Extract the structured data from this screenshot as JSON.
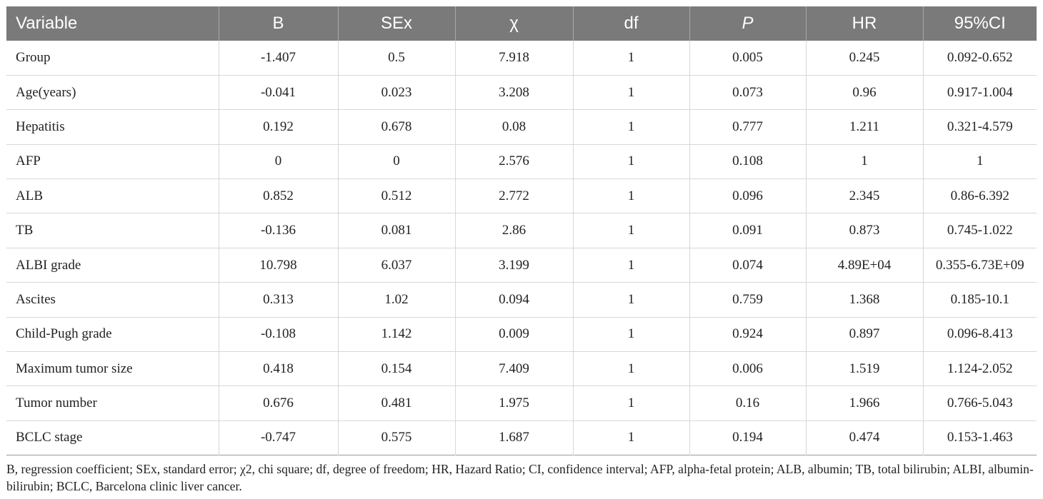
{
  "table": {
    "headers": [
      "Variable",
      "B",
      "SEx",
      "χ",
      "df",
      "P",
      "HR",
      "95%CI"
    ],
    "rows": [
      [
        "Group",
        "-1.407",
        "0.5",
        "7.918",
        "1",
        "0.005",
        "0.245",
        "0.092-0.652"
      ],
      [
        "Age(years)",
        "-0.041",
        "0.023",
        "3.208",
        "1",
        "0.073",
        "0.96",
        "0.917-1.004"
      ],
      [
        "Hepatitis",
        "0.192",
        "0.678",
        "0.08",
        "1",
        "0.777",
        "1.211",
        "0.321-4.579"
      ],
      [
        "AFP",
        "0",
        "0",
        "2.576",
        "1",
        "0.108",
        "1",
        "1"
      ],
      [
        "ALB",
        "0.852",
        "0.512",
        "2.772",
        "1",
        "0.096",
        "2.345",
        "0.86-6.392"
      ],
      [
        "TB",
        "-0.136",
        "0.081",
        "2.86",
        "1",
        "0.091",
        "0.873",
        "0.745-1.022"
      ],
      [
        "ALBI grade",
        "10.798",
        "6.037",
        "3.199",
        "1",
        "0.074",
        "4.89E+04",
        "0.355-6.73E+09"
      ],
      [
        "Ascites",
        "0.313",
        "1.02",
        "0.094",
        "1",
        "0.759",
        "1.368",
        "0.185-10.1"
      ],
      [
        "Child-Pugh grade",
        "-0.108",
        "1.142",
        "0.009",
        "1",
        "0.924",
        "0.897",
        "0.096-8.413"
      ],
      [
        "Maximum tumor size",
        "0.418",
        "0.154",
        "7.409",
        "1",
        "0.006",
        "1.519",
        "1.124-2.052"
      ],
      [
        "Tumor number",
        "0.676",
        "0.481",
        "1.975",
        "1",
        "0.16",
        "1.966",
        "0.766-5.043"
      ],
      [
        "BCLC stage",
        "-0.747",
        "0.575",
        "1.687",
        "1",
        "0.194",
        "0.474",
        "0.153-1.463"
      ]
    ]
  },
  "footnote": "B, regression coefficient; SEx, standard error; χ2, chi square; df, degree of freedom; HR, Hazard Ratio; CI, confidence interval; AFP, alpha-fetal protein; ALB, albumin; TB, total bilirubin; ALBI, albumin-bilirubin; BCLC, Barcelona clinic liver cancer.",
  "colors": {
    "header_bg": "#7a7a7a",
    "header_text": "#ffffff",
    "grid_line": "#d7d7d7",
    "body_text": "#222222"
  }
}
